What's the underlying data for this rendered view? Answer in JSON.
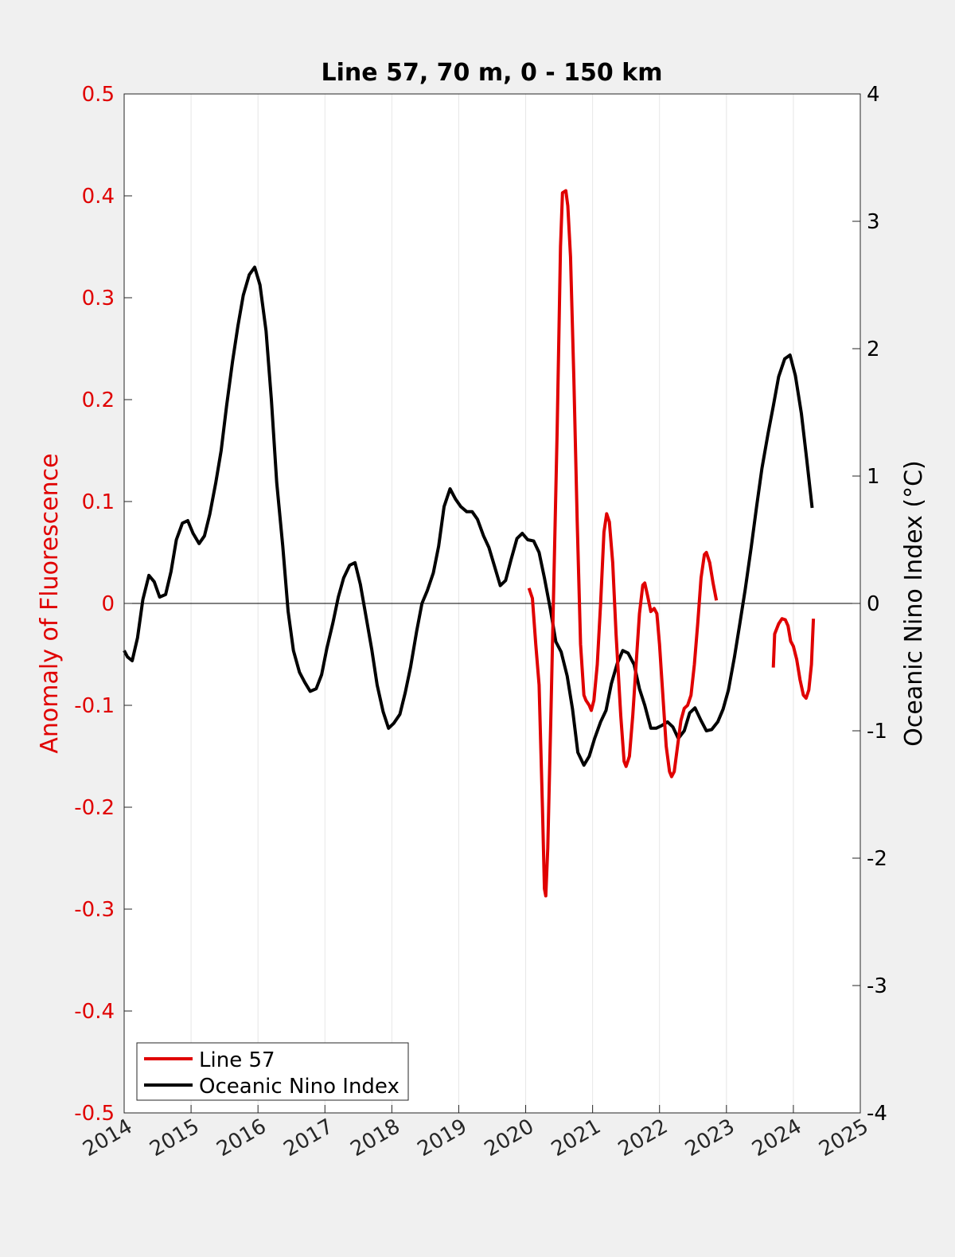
{
  "chart_data": {
    "type": "line",
    "title": "Line 57, 70 m, 0 - 150 km",
    "x_ticks": [
      "2014",
      "2015",
      "2016",
      "2017",
      "2018",
      "2019",
      "2020",
      "2021",
      "2022",
      "2023",
      "2024",
      "2025"
    ],
    "xlim": [
      2014,
      2025
    ],
    "left_axis": {
      "label": "Anomaly of Fluorescence",
      "ylim": [
        -0.5,
        0.5
      ],
      "ticks": [
        "-0.5",
        "-0.4",
        "-0.3",
        "-0.2",
        "-0.1",
        "0",
        "0.1",
        "0.2",
        "0.3",
        "0.4",
        "0.5"
      ],
      "color": "#e00000"
    },
    "right_axis": {
      "label": "Oceanic Nino Index (°C)",
      "ylim": [
        -4,
        4
      ],
      "ticks": [
        "-4",
        "-3",
        "-2",
        "-1",
        "0",
        "1",
        "2",
        "3",
        "4"
      ],
      "color": "#000000"
    },
    "grid": "vertical",
    "legend_position": "bottom-left",
    "series": [
      {
        "name": "Line 57",
        "axis": "left",
        "color": "#e00000",
        "segments": [
          [
            [
              2020.05,
              0.015
            ],
            [
              2020.1,
              0.005
            ],
            [
              2020.15,
              -0.04
            ],
            [
              2020.2,
              -0.08
            ],
            [
              2020.25,
              -0.2
            ],
            [
              2020.28,
              -0.28
            ],
            [
              2020.3,
              -0.287
            ],
            [
              2020.33,
              -0.24
            ],
            [
              2020.38,
              -0.1
            ],
            [
              2020.42,
              0.02
            ],
            [
              2020.47,
              0.17
            ],
            [
              2020.52,
              0.35
            ],
            [
              2020.55,
              0.403
            ],
            [
              2020.6,
              0.405
            ],
            [
              2020.63,
              0.39
            ],
            [
              2020.67,
              0.34
            ],
            [
              2020.72,
              0.22
            ],
            [
              2020.77,
              0.08
            ],
            [
              2020.82,
              -0.04
            ],
            [
              2020.87,
              -0.09
            ],
            [
              2020.9,
              -0.095
            ],
            [
              2020.95,
              -0.1
            ],
            [
              2020.98,
              -0.105
            ],
            [
              2021.02,
              -0.095
            ],
            [
              2021.07,
              -0.06
            ],
            [
              2021.12,
              0.0
            ],
            [
              2021.17,
              0.07
            ],
            [
              2021.21,
              0.088
            ],
            [
              2021.25,
              0.08
            ],
            [
              2021.3,
              0.04
            ],
            [
              2021.35,
              -0.03
            ],
            [
              2021.42,
              -0.11
            ],
            [
              2021.47,
              -0.155
            ],
            [
              2021.5,
              -0.16
            ],
            [
              2021.55,
              -0.15
            ],
            [
              2021.6,
              -0.11
            ],
            [
              2021.65,
              -0.06
            ],
            [
              2021.7,
              -0.01
            ],
            [
              2021.75,
              0.018
            ],
            [
              2021.78,
              0.02
            ],
            [
              2021.82,
              0.008
            ],
            [
              2021.87,
              -0.008
            ],
            [
              2021.92,
              -0.005
            ],
            [
              2021.96,
              -0.01
            ],
            [
              2022.0,
              -0.04
            ],
            [
              2022.05,
              -0.09
            ],
            [
              2022.1,
              -0.14
            ],
            [
              2022.15,
              -0.165
            ],
            [
              2022.18,
              -0.17
            ],
            [
              2022.22,
              -0.165
            ],
            [
              2022.27,
              -0.14
            ],
            [
              2022.32,
              -0.115
            ],
            [
              2022.37,
              -0.103
            ],
            [
              2022.42,
              -0.1
            ],
            [
              2022.47,
              -0.09
            ],
            [
              2022.52,
              -0.06
            ],
            [
              2022.57,
              -0.02
            ],
            [
              2022.62,
              0.025
            ],
            [
              2022.67,
              0.048
            ],
            [
              2022.7,
              0.05
            ],
            [
              2022.75,
              0.04
            ],
            [
              2022.8,
              0.02
            ],
            [
              2022.85,
              0.003
            ]
          ],
          [
            [
              2023.7,
              -0.063
            ],
            [
              2023.72,
              -0.03
            ],
            [
              2023.78,
              -0.02
            ],
            [
              2023.83,
              -0.015
            ],
            [
              2023.88,
              -0.016
            ],
            [
              2023.92,
              -0.022
            ],
            [
              2023.96,
              -0.037
            ],
            [
              2024.0,
              -0.042
            ],
            [
              2024.05,
              -0.055
            ],
            [
              2024.1,
              -0.075
            ],
            [
              2024.15,
              -0.09
            ],
            [
              2024.19,
              -0.093
            ],
            [
              2024.23,
              -0.085
            ],
            [
              2024.27,
              -0.06
            ],
            [
              2024.3,
              -0.015
            ]
          ]
        ]
      },
      {
        "name": "Oceanic Nino Index",
        "axis": "right",
        "color": "#000000",
        "segments": [
          [
            [
              2014.0,
              -0.37
            ],
            [
              2014.05,
              -0.42
            ],
            [
              2014.12,
              -0.45
            ],
            [
              2014.2,
              -0.27
            ],
            [
              2014.28,
              0.03
            ],
            [
              2014.37,
              0.22
            ],
            [
              2014.45,
              0.17
            ],
            [
              2014.53,
              0.05
            ],
            [
              2014.62,
              0.07
            ],
            [
              2014.7,
              0.25
            ],
            [
              2014.78,
              0.5
            ],
            [
              2014.87,
              0.63
            ],
            [
              2014.95,
              0.65
            ],
            [
              2015.03,
              0.55
            ],
            [
              2015.12,
              0.47
            ],
            [
              2015.2,
              0.53
            ],
            [
              2015.28,
              0.7
            ],
            [
              2015.37,
              0.95
            ],
            [
              2015.45,
              1.2
            ],
            [
              2015.53,
              1.55
            ],
            [
              2015.62,
              1.9
            ],
            [
              2015.7,
              2.18
            ],
            [
              2015.78,
              2.42
            ],
            [
              2015.87,
              2.58
            ],
            [
              2015.95,
              2.64
            ],
            [
              2016.03,
              2.5
            ],
            [
              2016.12,
              2.14
            ],
            [
              2016.2,
              1.6
            ],
            [
              2016.28,
              0.95
            ],
            [
              2016.37,
              0.45
            ],
            [
              2016.45,
              -0.06
            ],
            [
              2016.53,
              -0.37
            ],
            [
              2016.62,
              -0.54
            ],
            [
              2016.7,
              -0.62
            ],
            [
              2016.78,
              -0.69
            ],
            [
              2016.87,
              -0.67
            ],
            [
              2016.95,
              -0.56
            ],
            [
              2017.03,
              -0.35
            ],
            [
              2017.12,
              -0.15
            ],
            [
              2017.2,
              0.05
            ],
            [
              2017.28,
              0.2
            ],
            [
              2017.37,
              0.3
            ],
            [
              2017.45,
              0.32
            ],
            [
              2017.53,
              0.15
            ],
            [
              2017.62,
              -0.12
            ],
            [
              2017.7,
              -0.36
            ],
            [
              2017.78,
              -0.64
            ],
            [
              2017.87,
              -0.85
            ],
            [
              2017.95,
              -0.98
            ],
            [
              2018.03,
              -0.94
            ],
            [
              2018.12,
              -0.87
            ],
            [
              2018.2,
              -0.7
            ],
            [
              2018.28,
              -0.5
            ],
            [
              2018.37,
              -0.22
            ],
            [
              2018.45,
              0.0
            ],
            [
              2018.53,
              0.1
            ],
            [
              2018.62,
              0.24
            ],
            [
              2018.7,
              0.45
            ],
            [
              2018.78,
              0.76
            ],
            [
              2018.87,
              0.9
            ],
            [
              2018.95,
              0.82
            ],
            [
              2019.03,
              0.76
            ],
            [
              2019.12,
              0.72
            ],
            [
              2019.2,
              0.72
            ],
            [
              2019.28,
              0.66
            ],
            [
              2019.37,
              0.53
            ],
            [
              2019.45,
              0.44
            ],
            [
              2019.53,
              0.3
            ],
            [
              2019.62,
              0.14
            ],
            [
              2019.7,
              0.18
            ],
            [
              2019.78,
              0.34
            ],
            [
              2019.87,
              0.51
            ],
            [
              2019.95,
              0.55
            ],
            [
              2020.03,
              0.5
            ],
            [
              2020.12,
              0.49
            ],
            [
              2020.2,
              0.4
            ],
            [
              2020.28,
              0.2
            ],
            [
              2020.37,
              -0.05
            ],
            [
              2020.45,
              -0.3
            ],
            [
              2020.53,
              -0.38
            ],
            [
              2020.62,
              -0.57
            ],
            [
              2020.7,
              -0.83
            ],
            [
              2020.78,
              -1.17
            ],
            [
              2020.87,
              -1.27
            ],
            [
              2020.95,
              -1.2
            ],
            [
              2021.03,
              -1.06
            ],
            [
              2021.12,
              -0.93
            ],
            [
              2021.2,
              -0.84
            ],
            [
              2021.28,
              -0.63
            ],
            [
              2021.37,
              -0.47
            ],
            [
              2021.45,
              -0.37
            ],
            [
              2021.53,
              -0.39
            ],
            [
              2021.62,
              -0.48
            ],
            [
              2021.7,
              -0.67
            ],
            [
              2021.78,
              -0.8
            ],
            [
              2021.87,
              -0.98
            ],
            [
              2021.95,
              -0.98
            ],
            [
              2022.03,
              -0.96
            ],
            [
              2022.12,
              -0.93
            ],
            [
              2022.2,
              -0.97
            ],
            [
              2022.28,
              -1.06
            ],
            [
              2022.37,
              -1.0
            ],
            [
              2022.45,
              -0.86
            ],
            [
              2022.53,
              -0.82
            ],
            [
              2022.62,
              -0.92
            ],
            [
              2022.7,
              -1.0
            ],
            [
              2022.78,
              -0.99
            ],
            [
              2022.87,
              -0.93
            ],
            [
              2022.95,
              -0.83
            ],
            [
              2023.03,
              -0.68
            ],
            [
              2023.12,
              -0.42
            ],
            [
              2023.2,
              -0.16
            ],
            [
              2023.28,
              0.11
            ],
            [
              2023.37,
              0.44
            ],
            [
              2023.45,
              0.76
            ],
            [
              2023.53,
              1.06
            ],
            [
              2023.62,
              1.33
            ],
            [
              2023.7,
              1.55
            ],
            [
              2023.78,
              1.78
            ],
            [
              2023.87,
              1.92
            ],
            [
              2023.95,
              1.95
            ],
            [
              2024.03,
              1.79
            ],
            [
              2024.12,
              1.49
            ],
            [
              2024.2,
              1.13
            ],
            [
              2024.28,
              0.75
            ]
          ]
        ]
      }
    ]
  }
}
